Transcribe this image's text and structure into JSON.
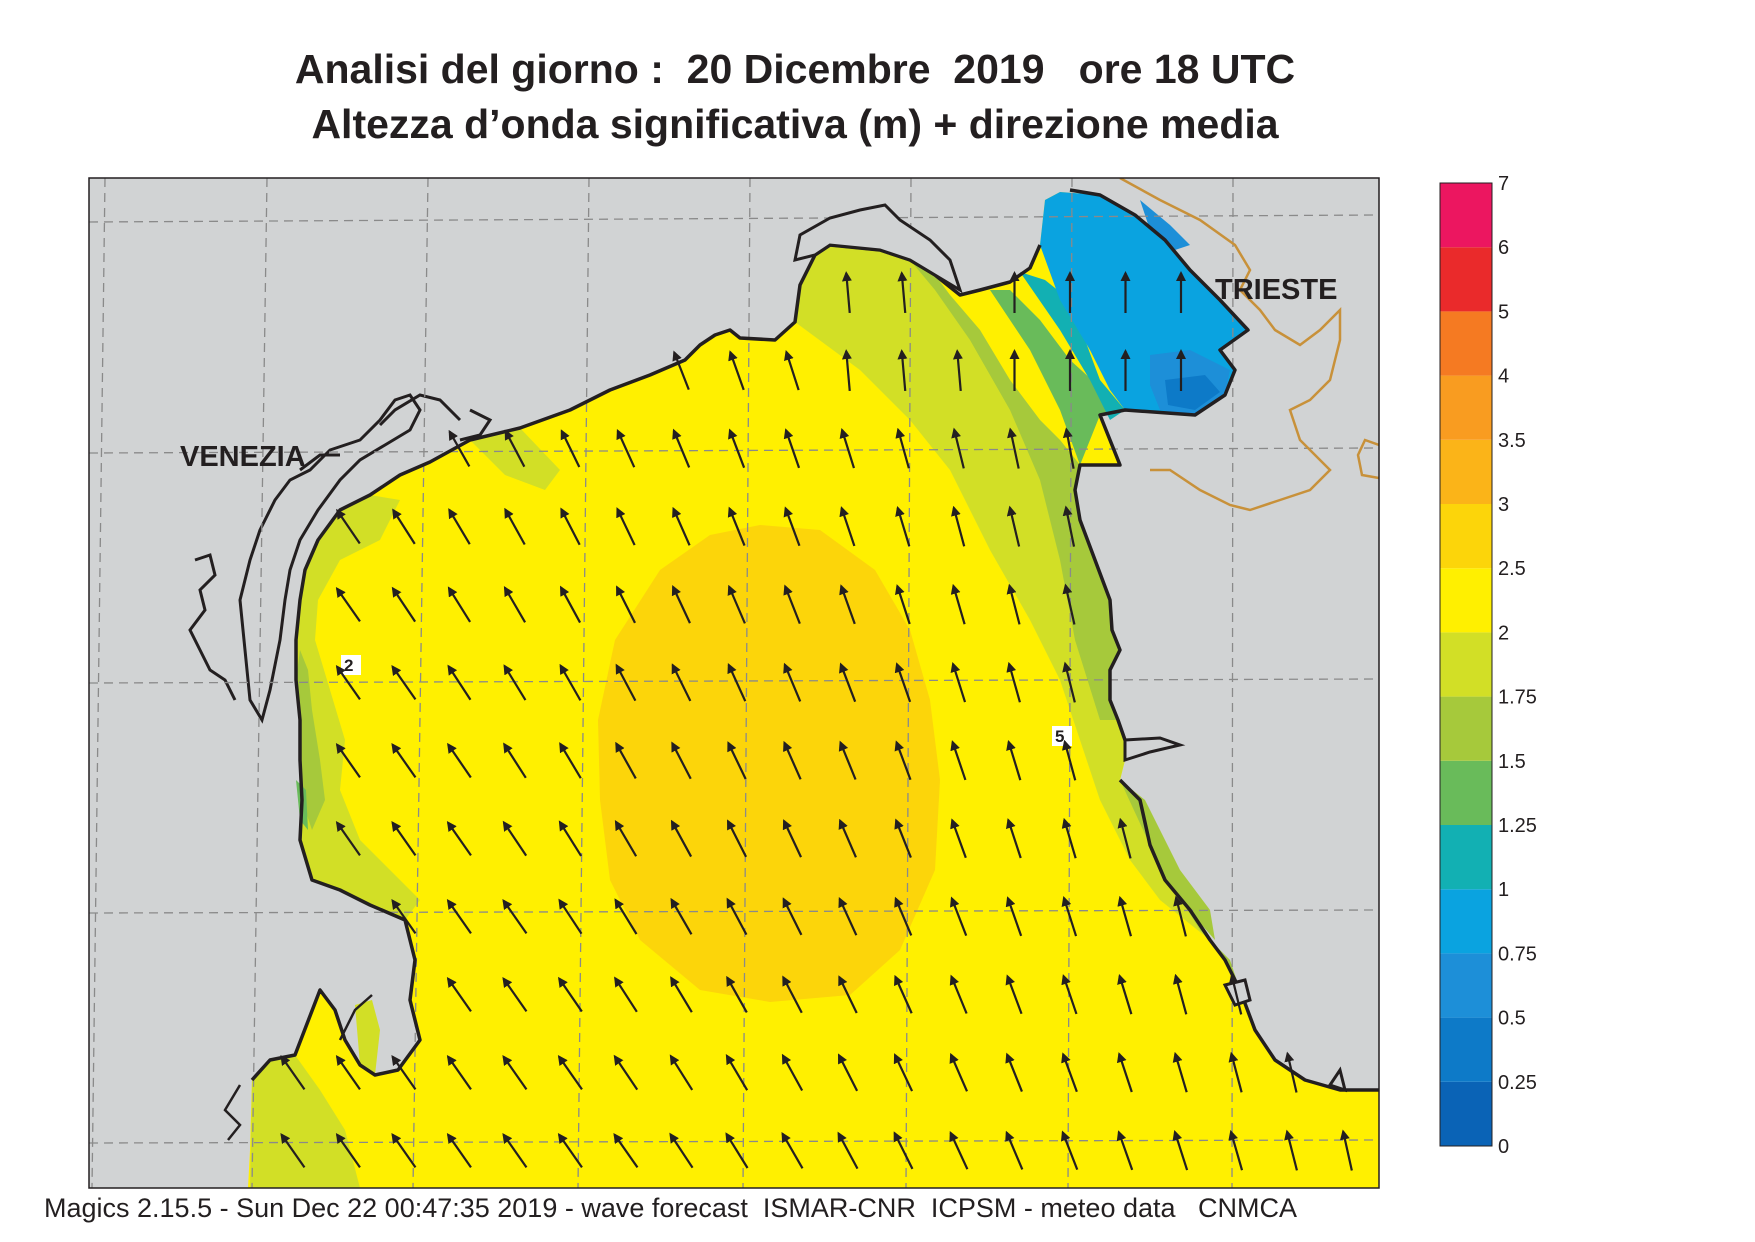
{
  "title": {
    "line1": "Analisi del giorno :  20 Dicembre  2019   ore 18 UTC",
    "line2": "Altezza d’onda significativa (m) + direzione media"
  },
  "places": {
    "venezia": "VENEZIA",
    "trieste": "TRIESTE"
  },
  "legend": {
    "levels": [
      "0",
      "0.25",
      "0.5",
      "0.75",
      "1",
      "1.25",
      "1.5",
      "1.75",
      "2",
      "2.5",
      "3",
      "3.5",
      "4",
      "5",
      "6",
      "7"
    ],
    "colors": [
      "#0a63b6",
      "#0d7ac8",
      "#1d8fd8",
      "#0aa3e0",
      "#12b0b3",
      "#69bb5a",
      "#a6c93b",
      "#d2df26",
      "#fff000",
      "#fcd50a",
      "#fbb418",
      "#f99c20",
      "#f57a22",
      "#ea2a2b",
      "#ec1660"
    ]
  },
  "colors": {
    "land": "#d1d3d4",
    "coast": "#231f20",
    "border": "#c8913a",
    "grid": "#8a8a8a",
    "arrow": "#231f20"
  },
  "footer": "Magics 2.15.5 - Sun Dec 22 00:47:35 2019 - wave forecast  ISMAR-CNR  ICPSM - meteo data   CNMCA"
}
